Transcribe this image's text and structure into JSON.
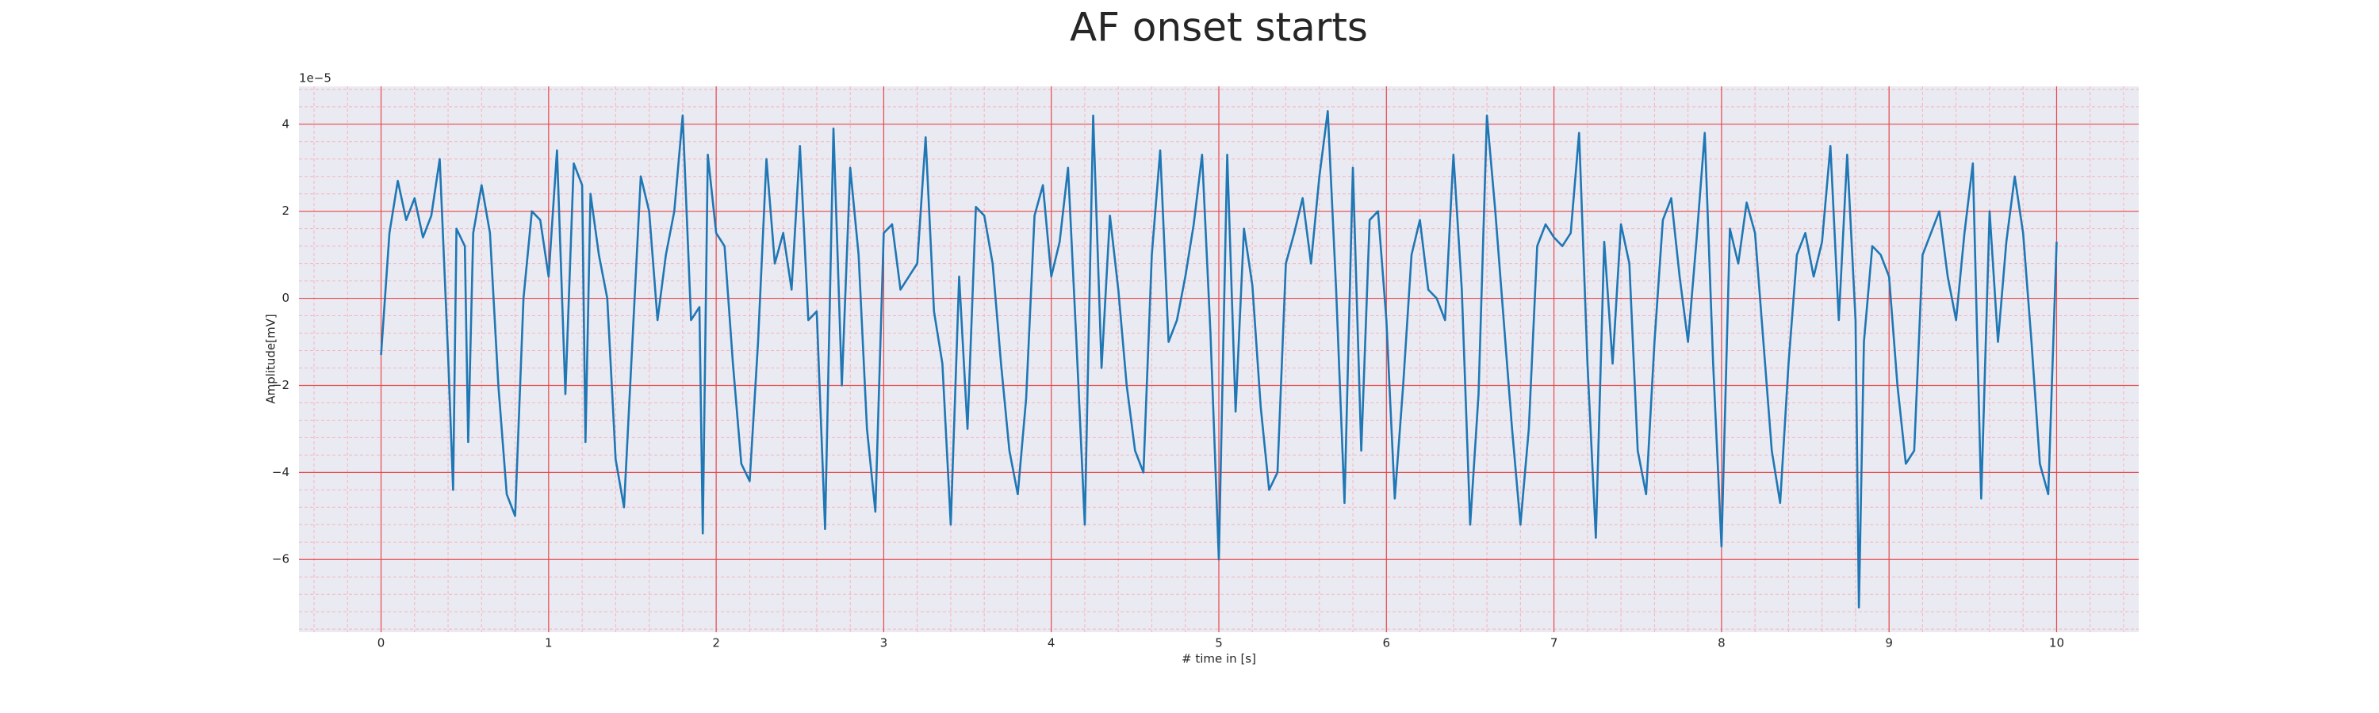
{
  "chart_data": {
    "type": "line",
    "title": "AF onset starts",
    "x_label": "# time in [s]",
    "y_label": "Amplitude[mV]",
    "y_offset_text": "1e−5",
    "color": "#1f77b4",
    "background": "#eaeaf2",
    "grid": true,
    "grid_color": "#e8474a",
    "minor_grid_color": "#f4b5bd",
    "xlim": [
      -0.49,
      10.49
    ],
    "ylim": [
      -7.67,
      4.87
    ],
    "xticks": [
      0,
      1,
      2,
      3,
      4,
      5,
      6,
      7,
      8,
      9,
      10
    ],
    "yticks": [
      {
        "value": -6,
        "label": "−6"
      },
      {
        "value": -4,
        "label": "−4"
      },
      {
        "value": -2,
        "label": "−2"
      },
      0,
      2,
      4
    ],
    "xminorticks": [
      -0.4,
      -0.2,
      0.2,
      0.4,
      0.6,
      0.8,
      1.2,
      1.4,
      1.6,
      1.8,
      2.2,
      2.4,
      2.6,
      2.8,
      3.2,
      3.4,
      3.6,
      3.8,
      4.2,
      4.4,
      4.6,
      4.8,
      5.2,
      5.4,
      5.6,
      5.8,
      6.2,
      6.4,
      6.6,
      6.8,
      7.2,
      7.4,
      7.6,
      7.8,
      8.2,
      8.4,
      8.6,
      8.8,
      9.2,
      9.4,
      9.6,
      9.8,
      10.2,
      10.4
    ],
    "yminorticks": [
      -7.6,
      -7.2,
      -6.8,
      -6.4,
      -5.6,
      -5.2,
      -4.8,
      -4.4,
      -3.6,
      -3.2,
      -2.8,
      -2.4,
      -1.6,
      -1.2,
      -0.8,
      -0.4,
      0.4,
      0.8,
      1.2,
      1.6,
      2.4,
      2.8,
      3.2,
      3.6,
      4.4,
      4.8
    ],
    "x": [
      0,
      0.05,
      0.1,
      0.15,
      0.2,
      0.25,
      0.3,
      0.35,
      0.4,
      0.43,
      0.45,
      0.5,
      0.52,
      0.55,
      0.6,
      0.65,
      0.7,
      0.75,
      0.8,
      0.85,
      0.9,
      0.95,
      1.0,
      1.05,
      1.1,
      1.15,
      1.2,
      1.22,
      1.25,
      1.3,
      1.35,
      1.4,
      1.45,
      1.5,
      1.55,
      1.6,
      1.65,
      1.7,
      1.75,
      1.8,
      1.85,
      1.9,
      1.92,
      1.95,
      2.0,
      2.05,
      2.1,
      2.15,
      2.2,
      2.25,
      2.3,
      2.35,
      2.4,
      2.45,
      2.5,
      2.55,
      2.6,
      2.65,
      2.7,
      2.75,
      2.8,
      2.85,
      2.9,
      2.95,
      3.0,
      3.05,
      3.1,
      3.15,
      3.2,
      3.25,
      3.3,
      3.35,
      3.4,
      3.45,
      3.5,
      3.55,
      3.6,
      3.65,
      3.7,
      3.75,
      3.8,
      3.85,
      3.9,
      3.95,
      4.0,
      4.05,
      4.1,
      4.15,
      4.2,
      4.25,
      4.3,
      4.35,
      4.4,
      4.45,
      4.5,
      4.55,
      4.6,
      4.65,
      4.7,
      4.75,
      4.8,
      4.85,
      4.9,
      4.95,
      5.0,
      5.05,
      5.1,
      5.15,
      5.2,
      5.25,
      5.3,
      5.35,
      5.4,
      5.45,
      5.5,
      5.55,
      5.6,
      5.65,
      5.7,
      5.75,
      5.8,
      5.85,
      5.9,
      5.95,
      6.0,
      6.05,
      6.1,
      6.15,
      6.2,
      6.25,
      6.3,
      6.35,
      6.4,
      6.45,
      6.5,
      6.55,
      6.6,
      6.65,
      6.7,
      6.75,
      6.8,
      6.85,
      6.9,
      6.95,
      7.0,
      7.05,
      7.1,
      7.15,
      7.2,
      7.25,
      7.3,
      7.35,
      7.4,
      7.45,
      7.5,
      7.55,
      7.6,
      7.65,
      7.7,
      7.75,
      7.8,
      7.85,
      7.9,
      7.95,
      8.0,
      8.05,
      8.1,
      8.15,
      8.2,
      8.25,
      8.3,
      8.35,
      8.4,
      8.45,
      8.5,
      8.55,
      8.6,
      8.65,
      8.7,
      8.75,
      8.8,
      8.82,
      8.85,
      8.9,
      8.95,
      9.0,
      9.05,
      9.1,
      9.15,
      9.2,
      9.25,
      9.3,
      9.35,
      9.4,
      9.45,
      9.5,
      9.55,
      9.6,
      9.65,
      9.7,
      9.75,
      9.8,
      9.85,
      9.9,
      9.95,
      10.0
    ],
    "values": [
      -1.3,
      1.5,
      2.7,
      1.8,
      2.3,
      1.4,
      1.9,
      3.2,
      -1.3,
      -4.4,
      1.6,
      1.2,
      -3.3,
      1.5,
      2.6,
      1.5,
      -2,
      -4.5,
      -5,
      0,
      2,
      1.8,
      0.5,
      3.4,
      -2.2,
      3.1,
      2.6,
      -3.3,
      2.4,
      1,
      0,
      -3.7,
      -4.8,
      -1,
      2.8,
      2,
      -0.5,
      1,
      2,
      4.2,
      -0.5,
      -0.2,
      -5.4,
      3.3,
      1.5,
      1.2,
      -1.5,
      -3.8,
      -4.2,
      -1,
      3.2,
      0.8,
      1.5,
      0.2,
      3.5,
      -0.5,
      -0.3,
      -5.3,
      3.9,
      -2,
      3,
      1,
      -3,
      -4.9,
      1.5,
      1.7,
      0.2,
      0.5,
      0.8,
      3.7,
      -0.3,
      -1.5,
      -5.2,
      0.5,
      -3,
      2.1,
      1.9,
      0.8,
      -1.5,
      -3.5,
      -4.5,
      -2.3,
      1.9,
      2.6,
      0.5,
      1.3,
      3,
      -1,
      -5.2,
      4.2,
      -1.6,
      1.9,
      0.2,
      -2,
      -3.5,
      -4,
      1,
      3.4,
      -1,
      -0.5,
      0.5,
      1.7,
      3.3,
      -0.8,
      -6,
      3.3,
      -2.6,
      1.6,
      0.3,
      -2.5,
      -4.4,
      -4,
      0.8,
      1.5,
      2.3,
      0.8,
      2.8,
      4.3,
      0.2,
      -4.7,
      3,
      -3.5,
      1.8,
      2,
      -0.5,
      -4.6,
      -2,
      1,
      1.8,
      0.2,
      0,
      -0.5,
      3.3,
      0.2,
      -5.2,
      -2.2,
      4.2,
      2,
      -0.5,
      -3,
      -5.2,
      -3,
      1.2,
      1.7,
      1.4,
      1.2,
      1.5,
      3.8,
      -1.5,
      -5.5,
      1.3,
      -1.5,
      1.7,
      0.8,
      -3.5,
      -4.5,
      -1,
      1.8,
      2.3,
      0.5,
      -1,
      1.3,
      3.8,
      -1.5,
      -5.7,
      1.6,
      0.8,
      2.2,
      1.5,
      -1,
      -3.5,
      -4.7,
      -1.5,
      1,
      1.5,
      0.5,
      1.3,
      3.5,
      -0.5,
      3.3,
      -0.5,
      -7.1,
      -1,
      1.2,
      1,
      0.5,
      -2,
      -3.8,
      -3.5,
      1,
      1.5,
      2,
      0.5,
      -0.5,
      1.5,
      3.1,
      -4.6,
      2,
      -1,
      1.3,
      2.8,
      1.5,
      -1,
      -3.8,
      -4.5,
      1.3
    ]
  }
}
